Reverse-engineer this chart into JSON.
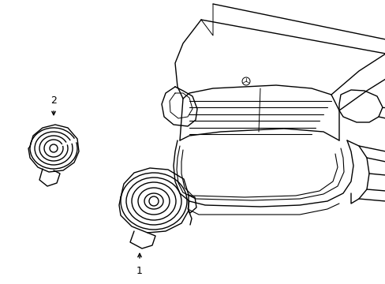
{
  "background_color": "#ffffff",
  "line_color": "#000000",
  "line_width": 1.0,
  "label1": "1",
  "label2": "2",
  "fig_width": 4.89,
  "fig_height": 3.6,
  "dpi": 100
}
